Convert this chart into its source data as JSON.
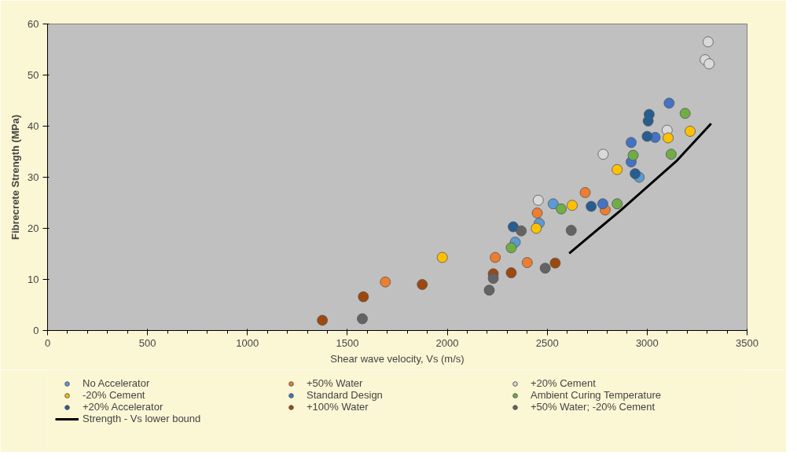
{
  "chart_data": {
    "type": "scatter",
    "xlabel": "Shear wave velocity, Vs (m/s)",
    "ylabel": "Fibrecrete Strength (MPa)",
    "xlim": [
      0,
      3500
    ],
    "ylim": [
      0,
      60
    ],
    "xticks": [
      0,
      500,
      1000,
      1500,
      2000,
      2500,
      3000,
      3500
    ],
    "yticks": [
      0,
      10,
      20,
      30,
      40,
      50,
      60
    ],
    "grid": false,
    "legend": "bottom",
    "marker": "circle",
    "series": [
      {
        "name": "No Accelerator",
        "color": "#5b9bd5",
        "x": [
          2340,
          2460,
          2530,
          2960
        ],
        "values": [
          17.3,
          21,
          24.8,
          30
        ]
      },
      {
        "name": "+50% Water",
        "color": "#ed7d31",
        "x": [
          1690,
          2240,
          2400,
          2450,
          2690,
          2790
        ],
        "values": [
          9.5,
          14.3,
          13.3,
          23,
          27,
          23.6
        ]
      },
      {
        "name": "+20% Cement",
        "color": "#d9d9d9",
        "x": [
          2455,
          2780,
          3100,
          3290,
          3305,
          3310
        ],
        "values": [
          25.5,
          34.5,
          39.2,
          53,
          56.5,
          52.2
        ]
      },
      {
        "name": "-20% Cement",
        "color": "#ffc000",
        "x": [
          1975,
          2445,
          2625,
          2850,
          3105,
          3215
        ],
        "values": [
          14.3,
          20,
          24.5,
          31.5,
          37.7,
          39
        ]
      },
      {
        "name": "Standard Design",
        "color": "#4472c4",
        "x": [
          2778,
          2920,
          2920,
          3040,
          3110
        ],
        "values": [
          24.8,
          36.8,
          33,
          37.8,
          44.5
        ]
      },
      {
        "name": "Ambient Curing Temperature",
        "color": "#70ad47",
        "x": [
          2320,
          2570,
          2850,
          2930,
          3120,
          3190
        ],
        "values": [
          16.2,
          23.8,
          24.8,
          34.3,
          34.5,
          42.5
        ]
      },
      {
        "name": "+20% Accelerator",
        "color": "#255e91",
        "x": [
          2330,
          2720,
          2940,
          3000,
          3005,
          3010
        ],
        "values": [
          20.3,
          24.3,
          30.7,
          38,
          41,
          42.3
        ]
      },
      {
        "name": "+100% Water",
        "color": "#9e480e",
        "x": [
          1375,
          1580,
          1875,
          2230,
          2320,
          2540
        ],
        "values": [
          2,
          6.6,
          9,
          11.1,
          11.3,
          13.2
        ]
      },
      {
        "name": "+50% Water; -20% Cement",
        "color": "#636363",
        "x": [
          1575,
          2210,
          2230,
          2370,
          2490,
          2620
        ],
        "values": [
          2.3,
          7.9,
          10.2,
          19.5,
          12.2,
          19.6
        ]
      },
      {
        "name": "Strength - Vs lower bound",
        "type": "line",
        "color": "#000000",
        "marker": "none",
        "line_style": "solid",
        "x": [
          2610,
          2870,
          3150,
          3320
        ],
        "values": [
          15.1,
          23.6,
          33.3,
          40.5
        ]
      }
    ]
  }
}
